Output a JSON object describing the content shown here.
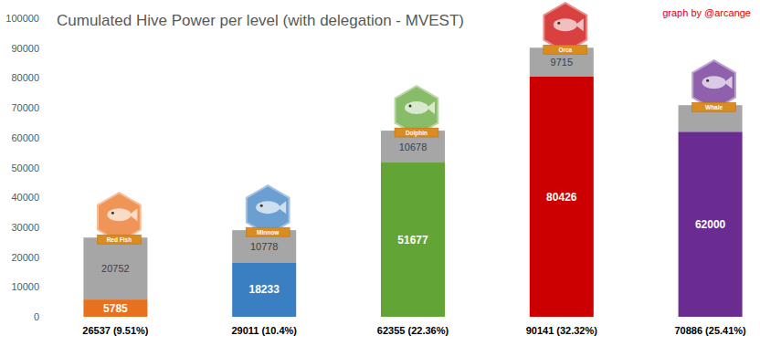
{
  "chart_data": {
    "type": "bar",
    "title": "Cumulated Hive Power per level (with delegation - MVEST)",
    "annotations": [
      "graph by @arcange"
    ],
    "level_names": [
      "Red Fish",
      "Minnow",
      "Dolphin",
      "Orca",
      "Whale"
    ],
    "categories": [
      "26537 (9.51%)",
      "29011 (10.4%)",
      "62355 (22.36%)",
      "90141 (32.32%)",
      "70886 (25.41%)"
    ],
    "series": [
      {
        "colors": [
          "#e8711f",
          "#3a7fc2",
          "#62a536",
          "#cc0000",
          "#6a2c91"
        ],
        "values": [
          5785,
          18233,
          51677,
          80426,
          62000
        ]
      },
      {
        "color": "#a6a6a6",
        "values": [
          20752,
          10778,
          10678,
          9715,
          8886
        ],
        "value_labels": [
          "20752",
          "10778",
          "10678",
          "9715",
          null
        ]
      }
    ],
    "stacked": true,
    "data_labels": true,
    "grid": false,
    "ylim": [
      0,
      100000
    ],
    "yticks": [
      0,
      10000,
      20000,
      30000,
      40000,
      50000,
      60000,
      70000,
      80000,
      90000,
      100000
    ]
  }
}
